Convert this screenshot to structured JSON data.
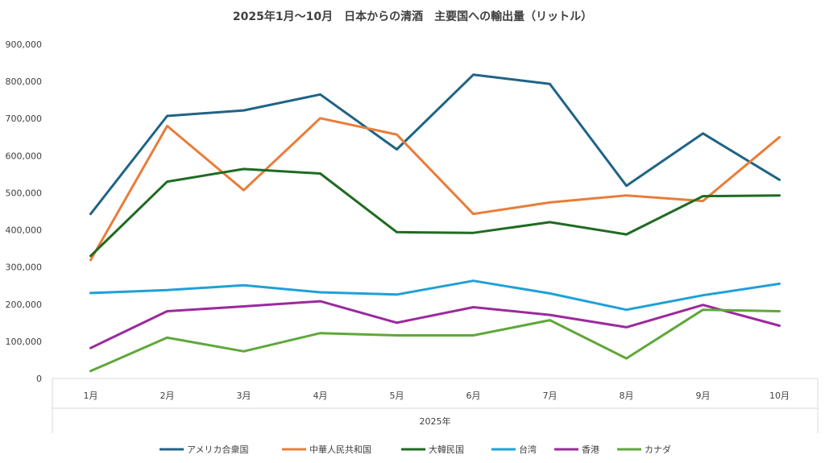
{
  "chart_data": {
    "type": "line",
    "title": "2025年1月～10月　日本からの清酒　主要国への輸出量（リットル）",
    "xlabel": "2025年",
    "ylabel": "",
    "categories": [
      "1月",
      "2月",
      "3月",
      "4月",
      "5月",
      "6月",
      "7月",
      "8月",
      "9月",
      "10月"
    ],
    "ylim": [
      0,
      900000
    ],
    "yticks": [
      0,
      100000,
      200000,
      300000,
      400000,
      500000,
      600000,
      700000,
      800000,
      900000
    ],
    "ytick_labels": [
      "0",
      "100,000",
      "200,000",
      "300,000",
      "400,000",
      "500,000",
      "600,000",
      "700,000",
      "800,000",
      "900,000"
    ],
    "grid": false,
    "legend_position": "bottom",
    "series": [
      {
        "name": "アメリカ合衆国",
        "color": "#1f6485",
        "values": [
          443000,
          707000,
          722000,
          765000,
          617000,
          818000,
          793000,
          519000,
          660000,
          535000
        ]
      },
      {
        "name": "中華人民共和国",
        "color": "#e97d38",
        "values": [
          319000,
          680000,
          507000,
          701000,
          657000,
          443000,
          474000,
          493000,
          478000,
          650000
        ]
      },
      {
        "name": "大韓民国",
        "color": "#1e6b22",
        "values": [
          330000,
          530000,
          564000,
          552000,
          394000,
          392000,
          421000,
          388000,
          491000,
          493000
        ]
      },
      {
        "name": "台湾",
        "color": "#20a0d8",
        "values": [
          230000,
          238000,
          251000,
          232000,
          226000,
          263000,
          229000,
          185000,
          224000,
          255000
        ]
      },
      {
        "name": "香港",
        "color": "#9b2a9d",
        "values": [
          82000,
          181000,
          194000,
          208000,
          150000,
          192000,
          171000,
          138000,
          198000,
          142000
        ]
      },
      {
        "name": "カナダ",
        "color": "#5ea83a",
        "values": [
          20000,
          110000,
          73000,
          122000,
          116000,
          116000,
          157000,
          54000,
          185000,
          181000
        ]
      }
    ]
  }
}
